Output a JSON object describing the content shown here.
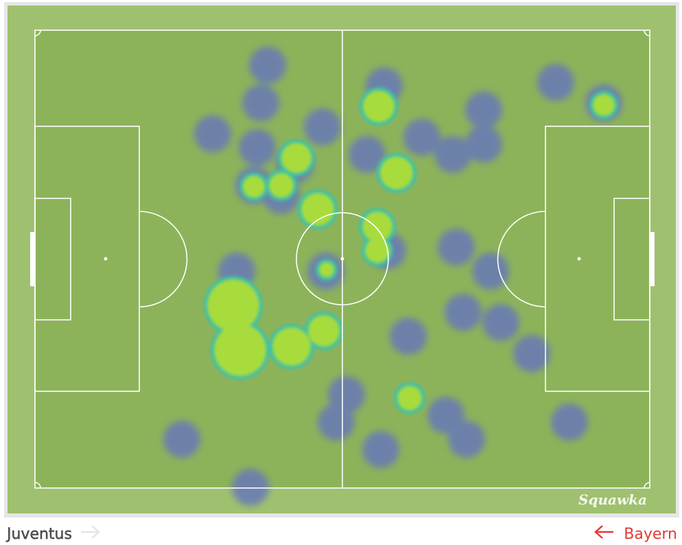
{
  "watermark": "Squawka",
  "footer": {
    "home_team": "Juventus",
    "away_team": "Bayern"
  }
}
